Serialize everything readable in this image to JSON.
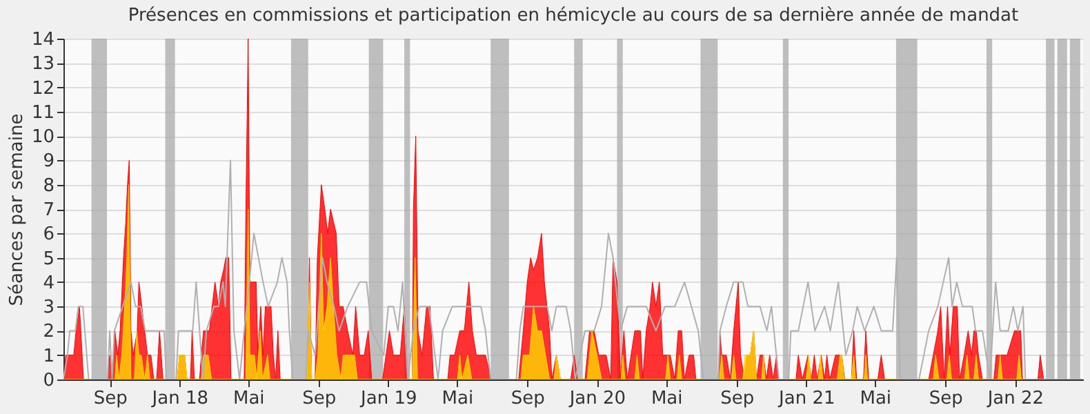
{
  "chart_data": {
    "type": "area",
    "title": "Présences en commissions et participation en hémicycle au cours de sa dernière année de mandat",
    "ylabel": "Séances par semaine",
    "xlim": [
      "2017-06-12",
      "2022-04-30"
    ],
    "xticks": [
      {
        "value": "2017-09-01",
        "label": "Sep"
      },
      {
        "value": "2018-01-01",
        "label": "Jan 18"
      },
      {
        "value": "2018-05-01",
        "label": "Mai"
      },
      {
        "value": "2018-09-01",
        "label": "Sep"
      },
      {
        "value": "2019-01-01",
        "label": "Jan 19"
      },
      {
        "value": "2019-05-01",
        "label": "Mai"
      },
      {
        "value": "2019-09-01",
        "label": "Sep"
      },
      {
        "value": "2020-01-01",
        "label": "Jan 20"
      },
      {
        "value": "2020-05-01",
        "label": "Mai"
      },
      {
        "value": "2020-09-01",
        "label": "Sep"
      },
      {
        "value": "2021-01-01",
        "label": "Jan 21"
      },
      {
        "value": "2021-05-01",
        "label": "Mai"
      },
      {
        "value": "2021-09-01",
        "label": "Sep"
      },
      {
        "value": "2022-01-01",
        "label": "Jan 22"
      }
    ],
    "ylim": [
      0,
      14
    ],
    "yticks": [
      0,
      1,
      2,
      3,
      4,
      5,
      6,
      7,
      8,
      9,
      10,
      11,
      12,
      13,
      14
    ],
    "grid": "y",
    "bands": [
      {
        "axis": "x",
        "from": "2017-07-31",
        "to": "2017-08-27",
        "color": "#aaaaaa"
      },
      {
        "axis": "x",
        "from": "2017-12-07",
        "to": "2017-12-24",
        "color": "#aaaaaa"
      },
      {
        "axis": "x",
        "from": "2018-07-15",
        "to": "2018-08-14",
        "color": "#aaaaaa"
      },
      {
        "axis": "x",
        "from": "2018-11-28",
        "to": "2018-12-23",
        "color": "#aaaaaa"
      },
      {
        "axis": "x",
        "from": "2019-01-29",
        "to": "2019-02-08",
        "color": "#aaaaaa"
      },
      {
        "axis": "x",
        "from": "2019-06-29",
        "to": "2019-07-31",
        "color": "#aaaaaa"
      },
      {
        "axis": "x",
        "from": "2019-11-22",
        "to": "2019-12-07",
        "color": "#aaaaaa"
      },
      {
        "axis": "x",
        "from": "2020-02-05",
        "to": "2020-02-15",
        "color": "#aaaaaa"
      },
      {
        "axis": "x",
        "from": "2020-06-30",
        "to": "2020-07-30",
        "color": "#aaaaaa"
      },
      {
        "axis": "x",
        "from": "2020-11-21",
        "to": "2020-12-01",
        "color": "#aaaaaa"
      },
      {
        "axis": "x",
        "from": "2021-06-07",
        "to": "2021-07-14",
        "color": "#aaaaaa"
      },
      {
        "axis": "x",
        "from": "2021-11-12",
        "to": "2021-11-22",
        "color": "#aaaaaa"
      },
      {
        "axis": "x",
        "from": "2022-02-24",
        "to": "2022-03-11",
        "color": "#aaaaaa"
      },
      {
        "axis": "x",
        "from": "2022-03-16",
        "to": "2022-04-02",
        "color": "#aaaaaa"
      },
      {
        "axis": "x",
        "from": "2022-04-07",
        "to": "2022-04-25",
        "color": "#aaaaaa"
      }
    ],
    "series": [
      {
        "color": "#ff0000",
        "x": [
          "2017-06-12",
          "2017-06-16",
          "2017-06-30",
          "2017-07-04",
          "2017-07-10",
          "2017-07-17",
          "2017-08-28",
          "2017-09-01",
          "2017-09-05",
          "2017-09-10",
          "2017-09-15",
          "2017-09-19",
          "2017-09-22",
          "2017-09-25",
          "2017-09-29",
          "2017-10-02",
          "2017-10-05",
          "2017-10-08",
          "2017-10-12",
          "2017-10-19",
          "2017-10-22",
          "2017-10-27",
          "2017-11-01",
          "2017-11-06",
          "2017-11-12",
          "2017-11-17",
          "2017-11-22",
          "2017-11-27",
          "2017-12-03",
          "2017-12-28",
          "2018-01-01",
          "2018-01-10",
          "2018-01-14",
          "2018-01-20",
          "2018-01-23",
          "2018-01-27",
          "2018-02-05",
          "2018-02-08",
          "2018-02-12",
          "2018-02-22",
          "2018-02-27",
          "2018-03-04",
          "2018-03-10",
          "2018-03-14",
          "2018-03-19",
          "2018-03-23",
          "2018-03-28",
          "2018-04-01",
          "2018-04-24",
          "2018-04-27",
          "2018-05-01",
          "2018-05-04",
          "2018-05-15",
          "2018-05-18",
          "2018-05-23",
          "2018-05-27",
          "2018-05-31",
          "2018-06-05",
          "2018-06-10",
          "2018-06-14",
          "2018-06-18",
          "2018-06-22",
          "2018-06-26",
          "2018-08-13",
          "2018-08-16",
          "2018-08-20",
          "2018-08-26",
          "2018-08-30",
          "2018-09-06",
          "2018-09-12",
          "2018-09-17",
          "2018-09-22",
          "2018-09-27",
          "2018-10-02",
          "2018-10-07",
          "2018-10-14",
          "2018-10-22",
          "2018-10-31",
          "2018-11-05",
          "2018-11-12",
          "2018-11-20",
          "2018-11-27",
          "2018-12-03",
          "2018-12-22",
          "2018-12-28",
          "2019-01-03",
          "2019-01-10",
          "2019-01-22",
          "2019-01-29",
          "2019-02-04",
          "2019-02-12",
          "2019-02-14",
          "2019-02-18",
          "2019-02-22",
          "2019-03-01",
          "2019-03-09",
          "2019-03-15",
          "2019-03-21",
          "2019-04-15",
          "2019-04-19",
          "2019-04-27",
          "2019-05-06",
          "2019-05-14",
          "2019-05-22",
          "2019-05-28",
          "2019-06-04",
          "2019-06-20",
          "2019-06-30",
          "2019-08-17",
          "2019-08-25",
          "2019-09-01",
          "2019-09-07",
          "2019-09-12",
          "2019-09-19",
          "2019-09-26",
          "2019-10-01",
          "2019-10-10",
          "2019-10-14",
          "2019-10-22",
          "2019-10-29",
          "2019-11-16",
          "2019-11-22",
          "2019-11-28",
          "2019-12-11",
          "2019-12-19",
          "2019-12-27",
          "2020-01-04",
          "2020-01-17",
          "2020-01-25",
          "2020-01-29",
          "2020-02-05",
          "2020-02-11",
          "2020-02-17",
          "2020-02-23",
          "2020-03-07",
          "2020-03-17",
          "2020-03-21",
          "2020-03-27",
          "2020-04-03",
          "2020-04-07",
          "2020-04-13",
          "2020-04-19",
          "2020-04-25",
          "2020-05-08",
          "2020-05-16",
          "2020-05-22",
          "2020-05-28",
          "2020-06-02",
          "2020-06-10",
          "2020-06-18",
          "2020-06-22",
          "2020-07-31",
          "2020-08-03",
          "2020-08-06",
          "2020-08-14",
          "2020-08-21",
          "2020-08-27",
          "2020-09-04",
          "2020-09-08",
          "2020-09-15",
          "2020-09-19",
          "2020-09-25",
          "2020-10-01",
          "2020-10-06",
          "2020-10-12",
          "2020-10-18",
          "2020-10-23",
          "2020-10-29",
          "2020-11-04",
          "2020-11-10",
          "2020-11-14",
          "2020-12-14",
          "2020-12-18",
          "2020-12-25",
          "2021-01-04",
          "2021-01-10",
          "2021-01-15",
          "2021-01-20",
          "2021-01-27",
          "2021-02-02",
          "2021-02-06",
          "2021-02-11",
          "2021-02-21",
          "2021-03-04",
          "2021-03-09",
          "2021-03-21",
          "2021-03-25",
          "2021-03-30",
          "2021-04-11",
          "2021-04-15",
          "2021-04-20",
          "2021-05-06",
          "2021-05-12",
          "2021-05-18",
          "2021-08-03",
          "2021-08-11",
          "2021-08-19",
          "2021-08-24",
          "2021-08-30",
          "2021-09-05",
          "2021-09-09",
          "2021-09-15",
          "2021-09-22",
          "2021-09-26",
          "2021-10-04",
          "2021-10-11",
          "2021-10-17",
          "2021-10-21",
          "2021-10-25",
          "2021-10-29",
          "2021-11-05",
          "2021-11-25",
          "2021-11-29",
          "2021-12-18",
          "2021-12-31",
          "2022-01-11",
          "2022-01-14",
          "2022-02-10",
          "2022-02-14",
          "2022-02-20",
          "2022-04-30"
        ],
        "values": [
          0,
          1,
          1,
          2,
          3,
          0,
          0,
          1,
          0,
          2,
          1,
          2,
          3.5,
          5,
          6.5,
          8,
          9,
          2,
          1,
          2,
          4,
          3,
          2,
          1,
          1,
          0,
          0,
          2,
          0,
          0,
          1,
          1,
          0,
          0,
          2,
          0,
          0,
          1,
          2,
          2,
          3,
          4,
          3,
          4,
          4.5,
          5,
          5,
          0,
          0,
          7,
          14,
          4,
          4,
          1,
          3,
          1,
          3,
          3,
          3,
          1,
          0,
          2,
          0,
          0,
          5,
          0,
          0,
          5,
          8,
          7,
          6,
          7,
          6.5,
          6,
          3,
          3,
          2,
          1,
          3,
          1,
          1,
          2,
          0,
          0,
          1,
          2,
          1,
          1,
          3,
          0,
          0,
          7,
          10,
          2,
          1,
          3,
          3,
          0,
          0,
          1,
          1,
          2,
          2,
          4,
          2,
          1,
          1,
          0,
          0,
          2,
          4,
          5,
          4.5,
          5,
          6,
          4,
          2,
          0,
          1,
          0,
          0,
          1,
          0,
          0,
          2,
          2,
          1,
          1,
          0,
          5,
          4,
          0,
          2,
          0,
          2,
          2,
          0,
          2,
          3,
          4,
          3,
          4,
          1,
          1,
          0,
          2,
          2,
          0,
          1,
          1,
          0,
          0,
          2,
          1,
          1,
          0,
          2,
          4,
          1,
          0,
          1,
          1,
          2,
          0,
          1,
          1,
          0,
          1,
          0,
          1,
          0,
          0,
          1,
          0,
          1,
          0,
          1,
          0,
          1,
          0,
          1,
          0,
          1,
          1,
          0,
          0,
          2,
          0,
          0,
          2,
          0,
          0,
          1,
          0,
          0,
          1,
          2,
          3,
          0,
          3,
          1,
          3,
          3,
          0,
          1,
          2,
          1,
          2,
          2,
          1,
          0,
          0,
          1,
          1,
          2,
          2,
          0,
          0,
          1,
          0,
          0
        ]
      },
      {
        "color": "#ffd700",
        "x": [
          "2017-06-12",
          "2017-09-10",
          "2017-09-13",
          "2017-09-17",
          "2017-09-22",
          "2017-09-27",
          "2017-10-01",
          "2017-10-04",
          "2017-10-08",
          "2017-10-14",
          "2017-10-18",
          "2017-10-22",
          "2017-10-26",
          "2017-11-01",
          "2017-11-06",
          "2017-11-10",
          "2017-12-28",
          "2018-01-01",
          "2018-01-10",
          "2018-01-14",
          "2018-02-08",
          "2018-02-12",
          "2018-02-20",
          "2018-02-26",
          "2018-04-27",
          "2018-05-01",
          "2018-05-04",
          "2018-05-12",
          "2018-05-16",
          "2018-05-22",
          "2018-05-26",
          "2018-06-04",
          "2018-06-08",
          "2018-08-12",
          "2018-08-16",
          "2018-08-20",
          "2018-08-26",
          "2018-08-31",
          "2018-09-06",
          "2018-09-10",
          "2018-09-16",
          "2018-09-22",
          "2018-09-27",
          "2018-10-03",
          "2018-10-10",
          "2018-10-14",
          "2018-11-03",
          "2018-11-08",
          "2019-02-12",
          "2019-02-17",
          "2019-02-21",
          "2019-05-02",
          "2019-05-06",
          "2019-05-10",
          "2019-05-20",
          "2019-05-27",
          "2019-08-21",
          "2019-08-25",
          "2019-09-05",
          "2019-09-12",
          "2019-09-19",
          "2019-09-26",
          "2019-10-03",
          "2019-10-10",
          "2019-10-18",
          "2019-10-22",
          "2019-10-29",
          "2019-12-15",
          "2019-12-23",
          "2020-01-01",
          "2020-01-09",
          "2020-02-12",
          "2020-02-15",
          "2020-02-19",
          "2020-03-07",
          "2020-03-11",
          "2020-03-15",
          "2020-04-30",
          "2020-05-04",
          "2020-05-08",
          "2020-05-20",
          "2020-05-24",
          "2020-05-28",
          "2020-08-02",
          "2020-08-06",
          "2020-08-10",
          "2020-08-23",
          "2020-08-27",
          "2020-08-31",
          "2020-09-12",
          "2020-09-16",
          "2020-09-25",
          "2020-10-01",
          "2020-10-06",
          "2020-10-15",
          "2020-10-18",
          "2020-10-21",
          "2021-01-01",
          "2021-01-05",
          "2021-01-09",
          "2021-01-22",
          "2021-01-26",
          "2021-01-30",
          "2021-02-24",
          "2021-03-01",
          "2021-03-04",
          "2021-03-08",
          "2021-03-21",
          "2021-03-25",
          "2021-03-28",
          "2021-04-12",
          "2021-04-15",
          "2021-04-18",
          "2021-08-11",
          "2021-08-15",
          "2021-08-21",
          "2021-09-04",
          "2021-09-08",
          "2021-09-12",
          "2021-10-05",
          "2021-10-09",
          "2021-10-13",
          "2021-10-21",
          "2021-10-25",
          "2021-10-29",
          "2021-12-02",
          "2021-12-06",
          "2021-12-10",
          "2022-01-04",
          "2022-01-08",
          "2022-01-12",
          "2022-04-30"
        ],
        "values": [
          0,
          0,
          1,
          0,
          1,
          3,
          5,
          8,
          0,
          0,
          2,
          1,
          1,
          0,
          1,
          0,
          0,
          1,
          1,
          0,
          0,
          1,
          1,
          0,
          0,
          7,
          1,
          1,
          0,
          2,
          0,
          1,
          0,
          0,
          4,
          0,
          0,
          1,
          6,
          2,
          3,
          5,
          3,
          1,
          0,
          1,
          1,
          0,
          0,
          5,
          0,
          0,
          1,
          0,
          1,
          0,
          0,
          1,
          1,
          3,
          2,
          2,
          1,
          0,
          0,
          1,
          0,
          0,
          2,
          1,
          0,
          0,
          1,
          0,
          0,
          1,
          0,
          0,
          1,
          0,
          0,
          1,
          0,
          0,
          1,
          0,
          0,
          1,
          0,
          0,
          1,
          1,
          2,
          0,
          0,
          1,
          0,
          0,
          1,
          0,
          0,
          1,
          0,
          0,
          1,
          1,
          0,
          0,
          1,
          0,
          0,
          1,
          0,
          0,
          1,
          0,
          0,
          1,
          0,
          0,
          1,
          0,
          0,
          1,
          0,
          0,
          1,
          0,
          0,
          1,
          0,
          0
        ]
      },
      {
        "type": "line",
        "color": "#b0b0b0",
        "x": [
          "2017-06-12",
          "2017-06-19",
          "2017-06-23",
          "2017-07-03",
          "2017-07-08",
          "2017-07-16",
          "2017-07-26",
          "2017-08-28",
          "2017-09-01",
          "2017-09-05",
          "2017-09-09",
          "2017-10-08",
          "2017-10-16",
          "2017-10-25",
          "2017-11-02",
          "2017-12-05",
          "2017-12-09",
          "2017-12-26",
          "2017-12-30",
          "2018-01-24",
          "2018-01-30",
          "2018-02-05",
          "2018-02-11",
          "2018-02-17",
          "2018-03-02",
          "2018-03-10",
          "2018-03-18",
          "2018-03-22",
          "2018-03-31",
          "2018-04-06",
          "2018-04-16",
          "2018-04-24",
          "2018-05-03",
          "2018-05-11",
          "2018-05-19",
          "2018-05-27",
          "2018-06-05",
          "2018-06-21",
          "2018-06-29",
          "2018-07-08",
          "2018-07-12",
          "2018-07-18",
          "2018-08-10",
          "2018-08-14",
          "2018-08-26",
          "2018-09-08",
          "2018-09-16",
          "2018-09-28",
          "2018-10-07",
          "2018-10-22",
          "2018-11-12",
          "2018-11-24",
          "2018-12-03",
          "2018-12-24",
          "2019-01-01",
          "2019-01-10",
          "2019-01-18",
          "2019-01-26",
          "2019-02-04",
          "2019-02-14",
          "2019-02-24",
          "2019-03-13",
          "2019-03-29",
          "2019-04-06",
          "2019-04-23",
          "2019-06-12",
          "2019-06-20",
          "2019-06-29",
          "2019-08-13",
          "2019-08-19",
          "2019-08-25",
          "2019-10-06",
          "2019-10-14",
          "2019-10-22",
          "2019-11-08",
          "2019-11-16",
          "2019-11-24",
          "2019-12-11",
          "2019-12-27",
          "2020-01-09",
          "2020-01-21",
          "2020-01-29",
          "2020-02-11",
          "2020-02-23",
          "2020-03-27",
          "2020-04-13",
          "2020-04-29",
          "2020-05-16",
          "2020-06-02",
          "2020-06-14",
          "2020-06-26",
          "2020-07-05",
          "2020-07-31",
          "2020-08-03",
          "2020-08-14",
          "2020-08-27",
          "2020-09-12",
          "2020-09-21",
          "2020-10-12",
          "2020-10-24",
          "2020-11-01",
          "2020-11-14",
          "2020-12-01",
          "2020-12-05",
          "2020-12-18",
          "2021-01-04",
          "2021-01-16",
          "2021-02-02",
          "2021-02-12",
          "2021-02-26",
          "2021-03-11",
          "2021-03-23",
          "2021-03-31",
          "2021-04-13",
          "2021-04-29",
          "2021-05-12",
          "2021-06-01",
          "2021-06-08",
          "2021-06-14",
          "2021-07-17",
          "2021-08-03",
          "2021-08-19",
          "2021-09-07",
          "2021-09-13",
          "2021-09-21",
          "2021-10-01",
          "2021-10-18",
          "2021-10-24",
          "2021-11-05",
          "2021-11-18",
          "2021-11-28",
          "2021-12-06",
          "2021-12-20",
          "2021-12-29",
          "2022-01-06",
          "2022-01-15",
          "2022-01-19",
          "2022-04-30"
        ],
        "values": [
          0,
          1,
          2,
          2,
          3,
          3,
          0,
          0,
          2,
          0,
          2,
          4,
          3,
          3,
          2,
          2,
          0,
          0,
          2,
          2,
          4,
          2,
          0,
          2,
          3,
          3,
          4,
          3,
          9,
          2,
          0,
          2,
          4,
          6,
          5,
          4,
          3,
          4,
          5,
          4,
          2,
          0,
          0,
          2,
          1,
          5,
          4,
          3,
          2,
          3,
          4,
          4,
          2,
          1,
          3,
          3,
          2,
          4,
          0,
          2,
          3,
          3,
          0,
          2,
          3,
          3,
          2,
          0,
          0,
          2,
          3,
          3,
          2,
          3,
          3,
          2,
          0,
          2,
          2,
          3,
          6,
          5,
          2,
          3,
          3,
          2,
          3,
          3,
          4,
          3,
          2,
          0,
          0,
          2,
          3,
          4,
          4,
          3,
          3,
          2,
          3,
          0,
          0,
          2,
          2,
          4,
          2,
          3,
          2,
          4,
          1,
          2,
          3,
          2,
          3,
          2,
          2,
          5,
          0,
          0,
          2,
          3,
          5,
          3,
          4,
          3,
          3,
          2,
          2,
          0,
          4,
          2,
          2,
          3,
          2,
          3,
          0,
          0
        ]
      }
    ]
  }
}
